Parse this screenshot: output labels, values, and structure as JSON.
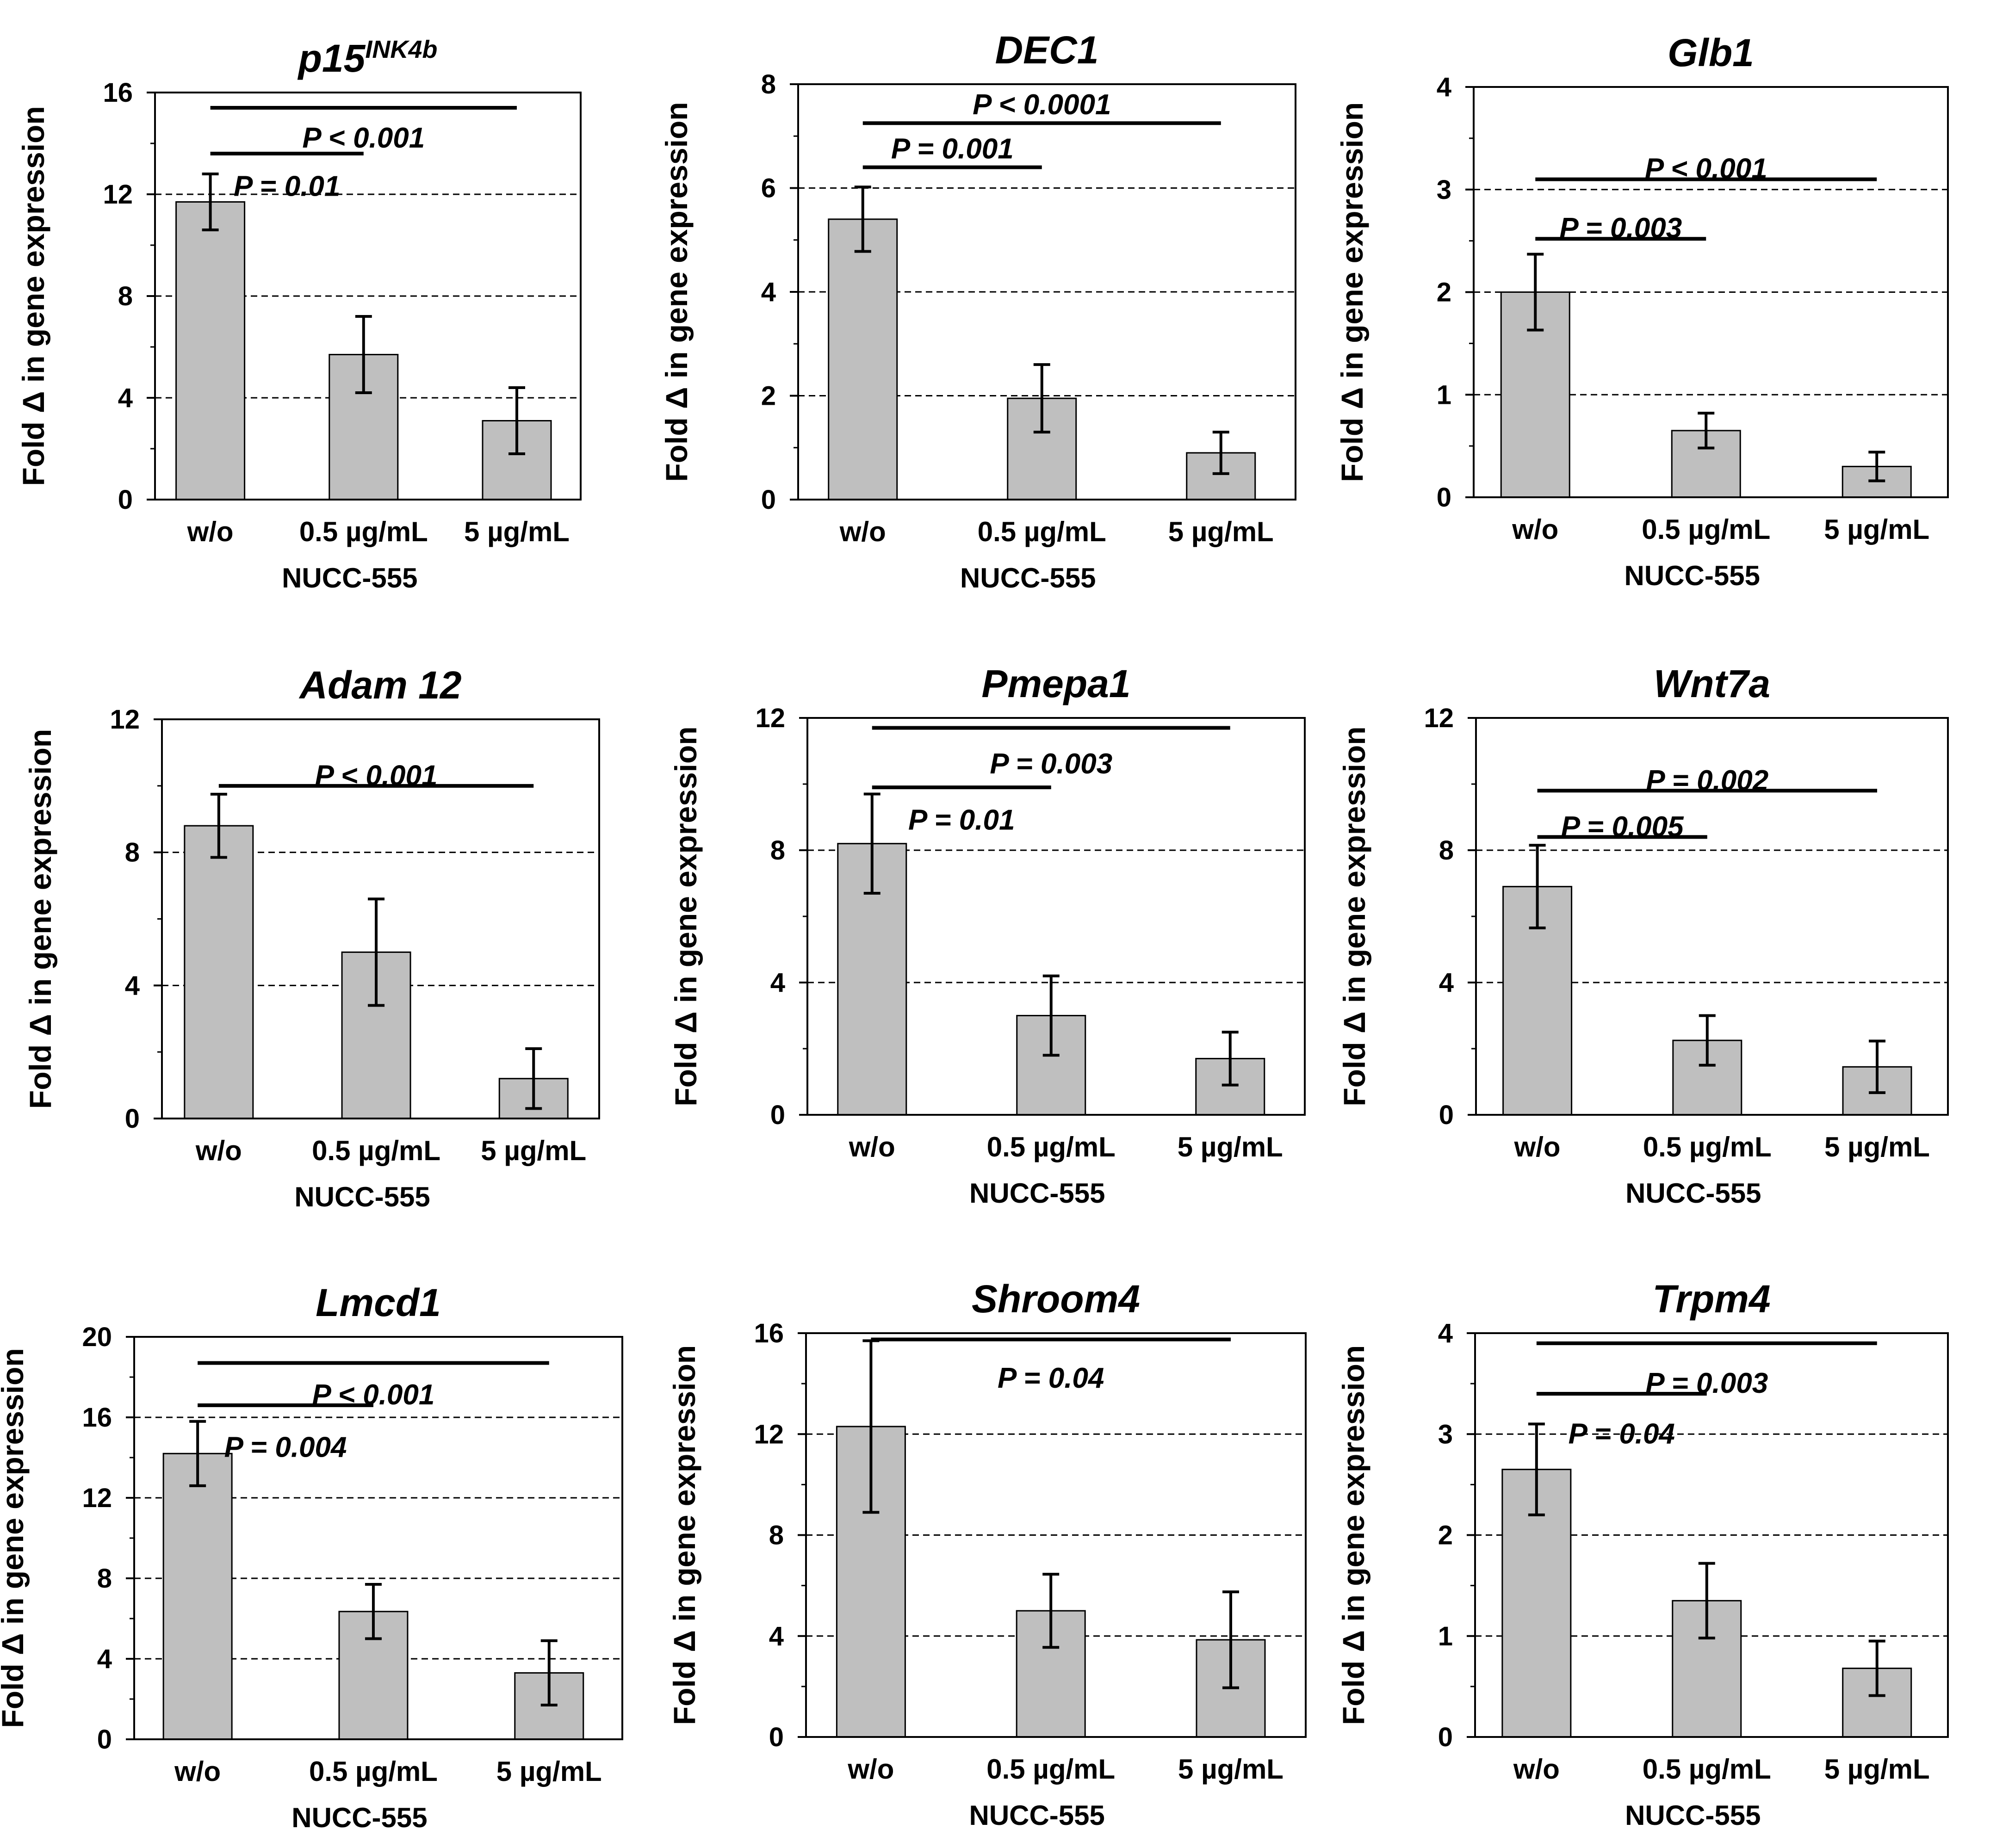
{
  "figure": {
    "title": ""
  },
  "chart_data": [
    {
      "type": "bar",
      "title_main": "p15",
      "title_sup": "INK4b",
      "ylabel": "Fold Δ in gene expression",
      "xlabel": "NUCC-555",
      "categories": [
        "w/o",
        "0.5 µg/mL",
        "5 µg/mL"
      ],
      "values": [
        11.7,
        5.7,
        3.1
      ],
      "errors": [
        1.1,
        1.5,
        1.3
      ],
      "ylim": [
        0,
        16
      ],
      "yticks": [
        0,
        4,
        8,
        12,
        16
      ],
      "grid": "dashed",
      "annotations": [
        {
          "from": 0,
          "to": 2,
          "y": 15.4,
          "text": "P < 0.001",
          "text_y": 14.2
        },
        {
          "from": 0,
          "to": 1,
          "y": 13.6,
          "text": "P = 0.01",
          "text_y": 12.3
        }
      ]
    },
    {
      "type": "bar",
      "title_main": "DEC1",
      "title_sup": "",
      "ylabel": "Fold Δ in gene expression",
      "xlabel": "NUCC-555",
      "categories": [
        "w/o",
        "0.5 µg/mL",
        "5 µg/mL"
      ],
      "values": [
        5.4,
        1.95,
        0.9
      ],
      "errors": [
        0.62,
        0.65,
        0.4
      ],
      "ylim": [
        0,
        8
      ],
      "yticks": [
        0,
        2,
        4,
        6,
        8
      ],
      "grid": "dashed",
      "annotations": [
        {
          "from": 0,
          "to": 2,
          "y": 7.25,
          "text": "P < 0.0001",
          "text_y": 7.6
        },
        {
          "from": 0,
          "to": 1,
          "y": 6.4,
          "text": "P = 0.001",
          "text_y": 6.75
        }
      ]
    },
    {
      "type": "bar",
      "title_main": "Glb1",
      "title_sup": "",
      "ylabel": "Fold Δ in gene expression",
      "xlabel": "NUCC-555",
      "categories": [
        "w/o",
        "0.5 µg/mL",
        "5 µg/mL"
      ],
      "values": [
        2.0,
        0.65,
        0.3
      ],
      "errors": [
        0.37,
        0.17,
        0.14
      ],
      "ylim": [
        0,
        4
      ],
      "yticks": [
        0,
        1,
        2,
        3,
        4
      ],
      "grid": "dashed",
      "annotations": [
        {
          "from": 0,
          "to": 2,
          "y": 3.1,
          "text": "P < 0.001",
          "text_y": 3.2
        },
        {
          "from": 0,
          "to": 1,
          "y": 2.52,
          "text": "P = 0.003",
          "text_y": 2.62
        }
      ]
    },
    {
      "type": "bar",
      "title_main": "Adam 12",
      "title_sup": "",
      "ylabel": "Fold Δ in gene expression",
      "xlabel": "NUCC-555",
      "categories": [
        "w/o",
        "0.5 µg/mL",
        "5 µg/mL"
      ],
      "values": [
        8.8,
        5.0,
        1.2
      ],
      "errors": [
        0.95,
        1.6,
        0.9
      ],
      "ylim": [
        0,
        12
      ],
      "yticks": [
        0,
        4,
        8,
        12
      ],
      "grid": "dashed",
      "annotations": [
        {
          "from": 0,
          "to": 2,
          "y": 10.0,
          "text": "P < 0.001",
          "text_y": 10.3
        }
      ]
    },
    {
      "type": "bar",
      "title_main": "Pmepa1",
      "title_sup": "",
      "ylabel": "Fold Δ in gene expression",
      "xlabel": "NUCC-555",
      "categories": [
        "w/o",
        "0.5 µg/mL",
        "5 µg/mL"
      ],
      "values": [
        8.2,
        3.0,
        1.7
      ],
      "errors": [
        1.5,
        1.2,
        0.8
      ],
      "ylim": [
        0,
        12
      ],
      "yticks": [
        0,
        4,
        8,
        12
      ],
      "grid": "dashed",
      "annotations": [
        {
          "from": 0,
          "to": 2,
          "y": 11.7,
          "text": "P = 0.003",
          "text_y": 10.6
        },
        {
          "from": 0,
          "to": 1,
          "y": 9.9,
          "text": "P = 0.01",
          "text_y": 8.9
        }
      ]
    },
    {
      "type": "bar",
      "title_main": "Wnt7a",
      "title_sup": "",
      "ylabel": "Fold Δ in gene expression",
      "xlabel": "NUCC-555",
      "categories": [
        "w/o",
        "0.5 µg/mL",
        "5 µg/mL"
      ],
      "values": [
        6.9,
        2.25,
        1.45
      ],
      "errors": [
        1.25,
        0.75,
        0.78
      ],
      "ylim": [
        0,
        12
      ],
      "yticks": [
        0,
        4,
        8,
        12
      ],
      "grid": "dashed",
      "annotations": [
        {
          "from": 0,
          "to": 2,
          "y": 9.8,
          "text": "P = 0.002",
          "text_y": 10.1
        },
        {
          "from": 0,
          "to": 1,
          "y": 8.4,
          "text": "P = 0.005",
          "text_y": 8.7
        }
      ]
    },
    {
      "type": "bar",
      "title_main": "Lmcd1",
      "title_sup": "",
      "ylabel": "Fold Δ in gene expression",
      "xlabel": "NUCC-555",
      "categories": [
        "w/o",
        "0.5 µg/mL",
        "5 µg/mL"
      ],
      "values": [
        14.2,
        6.35,
        3.3
      ],
      "errors": [
        1.6,
        1.35,
        1.6
      ],
      "ylim": [
        0,
        20
      ],
      "yticks": [
        0,
        4,
        8,
        12,
        16,
        20
      ],
      "grid": "dashed",
      "annotations": [
        {
          "from": 0,
          "to": 2,
          "y": 18.7,
          "text": "P < 0.001",
          "text_y": 17.1
        },
        {
          "from": 0,
          "to": 1,
          "y": 16.6,
          "text": "P = 0.004",
          "text_y": 14.5
        }
      ]
    },
    {
      "type": "bar",
      "title_main": "Shroom4",
      "title_sup": "",
      "ylabel": "Fold Δ in gene expression",
      "xlabel": "NUCC-555",
      "categories": [
        "w/o",
        "0.5 µg/mL",
        "5 µg/mL"
      ],
      "values": [
        12.3,
        5.0,
        3.85
      ],
      "errors": [
        3.4,
        1.45,
        1.9
      ],
      "ylim": [
        0,
        16
      ],
      "yticks": [
        0,
        4,
        8,
        12,
        16
      ],
      "grid": "dashed",
      "annotations": [
        {
          "from": 0,
          "to": 2,
          "y": 15.75,
          "text": "P = 0.04",
          "text_y": 14.2
        }
      ]
    },
    {
      "type": "bar",
      "title_main": "Trpm4",
      "title_sup": "",
      "ylabel": "Fold Δ in gene expression",
      "xlabel": "NUCC-555",
      "categories": [
        "w/o",
        "0.5 µg/mL",
        "5 µg/mL"
      ],
      "values": [
        2.65,
        1.35,
        0.68
      ],
      "errors": [
        0.45,
        0.37,
        0.27
      ],
      "ylim": [
        0,
        4
      ],
      "yticks": [
        0,
        1,
        2,
        3,
        4
      ],
      "grid": "dashed",
      "annotations": [
        {
          "from": 0,
          "to": 2,
          "y": 3.9,
          "text": "P = 0.003",
          "text_y": 3.5
        },
        {
          "from": 0,
          "to": 1,
          "y": 3.4,
          "text": "P = 0.04",
          "text_y": 3.0
        }
      ]
    }
  ]
}
